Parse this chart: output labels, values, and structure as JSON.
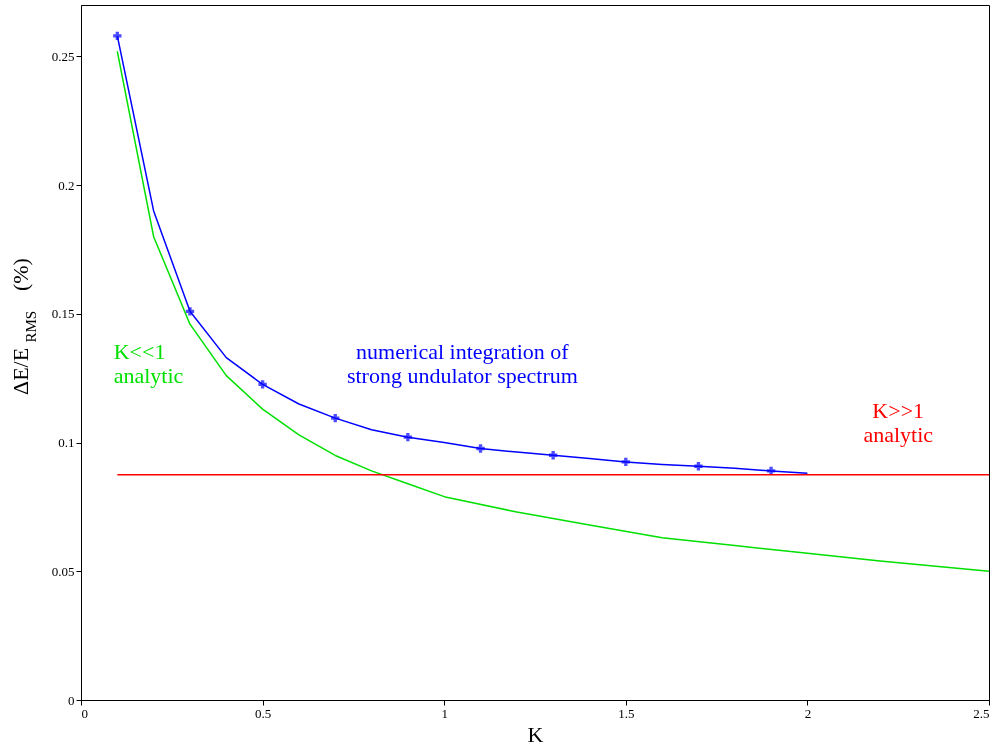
{
  "chart_data": {
    "type": "line",
    "xlabel": "K",
    "ylabel": "ΔE/E$_{RMS}$   (%)",
    "xlim": [
      0,
      2.5
    ],
    "xticks": [
      0,
      0.5,
      1,
      1.5,
      2,
      2.5
    ],
    "ylim": [
      0,
      0.27
    ],
    "yticks": [
      0,
      0.05,
      0.1,
      0.15,
      0.2,
      0.25
    ],
    "grid": false,
    "series": [
      {
        "name": "numerical integration of\nstrong undulator spectrum",
        "color": "#0000ff",
        "marker": "none",
        "x": [
          0.1,
          0.2,
          0.3,
          0.4,
          0.5,
          0.6,
          0.7,
          0.8,
          0.9,
          1.0,
          1.1,
          1.2,
          1.3,
          1.4,
          1.5,
          1.6,
          1.7,
          1.8,
          1.9,
          2.0
        ],
        "values": [
          0.258,
          0.19,
          0.151,
          0.133,
          0.1226,
          0.115,
          0.1095,
          0.105,
          0.1021,
          0.1,
          0.0977,
          0.0963,
          0.0951,
          0.0938,
          0.0925,
          0.0915,
          0.0908,
          0.09,
          0.089,
          0.0881
        ]
      },
      {
        "color": "#0000ff",
        "type": "scatter",
        "marker": "cross",
        "x": [
          0.1,
          0.3,
          0.5,
          0.7,
          0.9,
          1.1,
          1.3,
          1.5,
          1.7,
          1.9
        ],
        "values": [
          0.258,
          0.151,
          0.1226,
          0.1095,
          0.1021,
          0.0977,
          0.0951,
          0.0925,
          0.0908,
          0.089
        ]
      },
      {
        "name": "K<<1\nanalytic",
        "color": "#00e000",
        "marker": "none",
        "x": [
          0.1,
          0.2,
          0.3,
          0.4,
          0.5,
          0.6,
          0.7,
          0.8,
          0.9,
          1.0,
          1.2,
          1.4,
          1.6,
          1.8,
          2.0,
          2.2,
          2.5
        ],
        "values": [
          0.252,
          0.18,
          0.146,
          0.126,
          0.113,
          0.103,
          0.095,
          0.089,
          0.084,
          0.079,
          0.073,
          0.068,
          0.063,
          0.06,
          0.057,
          0.054,
          0.05
        ]
      },
      {
        "name": "K>>1\nanalytic",
        "color": "#ff0000",
        "marker": "none",
        "x": [
          0.1,
          2.5
        ],
        "values": [
          0.0875,
          0.0875
        ]
      }
    ]
  }
}
